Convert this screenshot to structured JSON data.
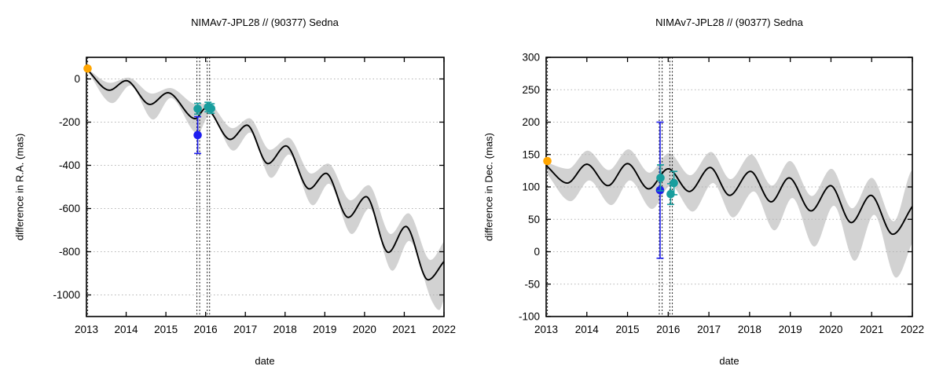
{
  "figure": {
    "background": "#ffffff",
    "description": "Two-panel ephemeris comparison plot"
  },
  "colors": {
    "curve": "#000000",
    "band": "#d2d2d2",
    "grid": "#b3b3b3",
    "frame": "#000000",
    "event_line": "#1a1a1a",
    "orange_point": "#ffa500",
    "blue_point": "#1e1eef",
    "teal_point": "#189e9e"
  },
  "chart_data": [
    {
      "type": "line",
      "title": "NIMAv7-JPL28 // (90377) Sedna",
      "xlabel": "date",
      "ylabel": "difference in R.A. (mas)",
      "xlim": [
        2013,
        2022
      ],
      "ylim": [
        -1100,
        100
      ],
      "xticks": [
        2013,
        2014,
        2015,
        2016,
        2017,
        2018,
        2019,
        2020,
        2021,
        2022
      ],
      "yticks": [
        0,
        -200,
        -400,
        -600,
        -800,
        -1000
      ],
      "grid": true,
      "legend_position": "none",
      "series": [
        {
          "name": "model-difference-curve",
          "color": "#000000",
          "x": [
            2013.0,
            2013.58,
            2014.0,
            2014.6,
            2015.05,
            2015.74,
            2016.0,
            2016.62,
            2017.04,
            2017.57,
            2018.02,
            2018.61,
            2019.03,
            2019.59,
            2020.04,
            2020.6,
            2021.04,
            2021.6,
            2022.0
          ],
          "y": [
            47,
            -52,
            -8,
            -118,
            -64,
            -184,
            -136,
            -280,
            -214,
            -392,
            -310,
            -509,
            -437,
            -641,
            -545,
            -803,
            -683,
            -930,
            -845
          ]
        }
      ],
      "uncertainty_band": {
        "color": "#d2d2d2",
        "upper": {
          "x": [
            2013.0,
            2013.6,
            2014.05,
            2014.65,
            2015.1,
            2015.78,
            2016.05,
            2016.68,
            2017.1,
            2017.62,
            2018.08,
            2018.66,
            2019.08,
            2019.65,
            2020.1,
            2020.66,
            2021.1,
            2021.66,
            2022.0
          ],
          "y": [
            50,
            -18,
            6,
            -68,
            -42,
            -118,
            -112,
            -228,
            -182,
            -328,
            -272,
            -438,
            -392,
            -562,
            -492,
            -718,
            -622,
            -838,
            -752
          ]
        },
        "lower": {
          "x": [
            2013.0,
            2013.65,
            2014.1,
            2014.68,
            2015.12,
            2015.8,
            2016.1,
            2016.7,
            2017.12,
            2017.65,
            2018.1,
            2018.7,
            2019.1,
            2019.68,
            2020.12,
            2020.7,
            2021.12,
            2021.7,
            2021.88,
            2022.0
          ],
          "y": [
            44,
            -112,
            -30,
            -188,
            -88,
            -252,
            -165,
            -332,
            -248,
            -458,
            -350,
            -585,
            -485,
            -718,
            -600,
            -888,
            -750,
            -1030,
            -1070,
            -1020
          ]
        }
      },
      "event_lines": {
        "style": "dotted",
        "color": "#1a1a1a",
        "dates": [
          2013.03,
          2015.78,
          2015.85,
          2016.04,
          2016.1
        ]
      },
      "points": [
        {
          "name": "orange-start-point",
          "color": "#ffa500",
          "x": 2013.03,
          "y": 48,
          "err": 0
        },
        {
          "name": "blue-observation-point",
          "color": "#1e1eef",
          "x": 2015.8,
          "y": -260,
          "err": 85
        },
        {
          "name": "teal-observation-point-1",
          "color": "#189e9e",
          "x": 2015.8,
          "y": -138,
          "err": 25
        },
        {
          "name": "teal-observation-point-2",
          "color": "#189e9e",
          "x": 2016.06,
          "y": -130,
          "err": 22
        },
        {
          "name": "teal-observation-point-3",
          "color": "#189e9e",
          "x": 2016.14,
          "y": -137,
          "err": 22
        }
      ]
    },
    {
      "type": "line",
      "title": "NIMAv7-JPL28 // (90377) Sedna",
      "xlabel": "date",
      "ylabel": "difference in Dec. (mas)",
      "xlim": [
        2013,
        2022
      ],
      "ylim": [
        -100,
        300
      ],
      "xticks": [
        2013,
        2014,
        2015,
        2016,
        2017,
        2018,
        2019,
        2020,
        2021,
        2022
      ],
      "yticks": [
        300,
        250,
        200,
        150,
        100,
        50,
        0,
        -50,
        -100
      ],
      "grid": true,
      "legend_position": "none",
      "series": [
        {
          "name": "model-difference-curve",
          "color": "#000000",
          "x": [
            2013.0,
            2013.52,
            2014.0,
            2014.52,
            2015.0,
            2015.52,
            2016.0,
            2016.52,
            2017.03,
            2017.51,
            2018.02,
            2018.53,
            2018.97,
            2019.51,
            2019.99,
            2020.5,
            2020.98,
            2021.52,
            2022.0
          ],
          "y": [
            133,
            106,
            135,
            102,
            136,
            97,
            128,
            93,
            130,
            87,
            124,
            77,
            114,
            63,
            102,
            45,
            87,
            27,
            70
          ]
        }
      ],
      "uncertainty_band": {
        "color": "#d2d2d2",
        "upper": {
          "x": [
            2013.0,
            2013.54,
            2014.02,
            2014.54,
            2015.02,
            2015.54,
            2016.02,
            2016.54,
            2017.05,
            2017.53,
            2018.04,
            2018.55,
            2018.99,
            2019.53,
            2020.01,
            2020.52,
            2021.0,
            2021.54,
            2021.95,
            2022.0
          ],
          "y": [
            138,
            128,
            156,
            126,
            158,
            122,
            152,
            118,
            154,
            112,
            150,
            102,
            140,
            86,
            128,
            67,
            114,
            47,
            122,
            126
          ]
        },
        "lower": {
          "x": [
            2013.0,
            2013.6,
            2014.06,
            2014.6,
            2015.06,
            2015.6,
            2016.06,
            2016.6,
            2017.1,
            2017.59,
            2018.1,
            2018.61,
            2019.05,
            2019.59,
            2020.07,
            2020.58,
            2021.06,
            2021.6,
            2022.0
          ],
          "y": [
            122,
            78,
            110,
            72,
            110,
            66,
            102,
            62,
            106,
            53,
            93,
            33,
            83,
            8,
            71,
            -14,
            57,
            -40,
            14
          ]
        }
      },
      "event_lines": {
        "style": "dotted",
        "color": "#1a1a1a",
        "dates": [
          2013.03,
          2015.78,
          2015.85,
          2016.04,
          2016.1
        ]
      },
      "points": [
        {
          "name": "orange-start-point",
          "color": "#ffa500",
          "x": 2013.03,
          "y": 140,
          "err": 0
        },
        {
          "name": "blue-observation-point",
          "color": "#1e1eef",
          "x": 2015.8,
          "y": 95,
          "err": 105
        },
        {
          "name": "teal-observation-point-1",
          "color": "#189e9e",
          "x": 2015.81,
          "y": 114,
          "err": 20
        },
        {
          "name": "teal-observation-point-2",
          "color": "#189e9e",
          "x": 2016.06,
          "y": 89,
          "err": 16
        },
        {
          "name": "teal-observation-point-3",
          "color": "#189e9e",
          "x": 2016.14,
          "y": 106,
          "err": 18
        }
      ]
    }
  ]
}
